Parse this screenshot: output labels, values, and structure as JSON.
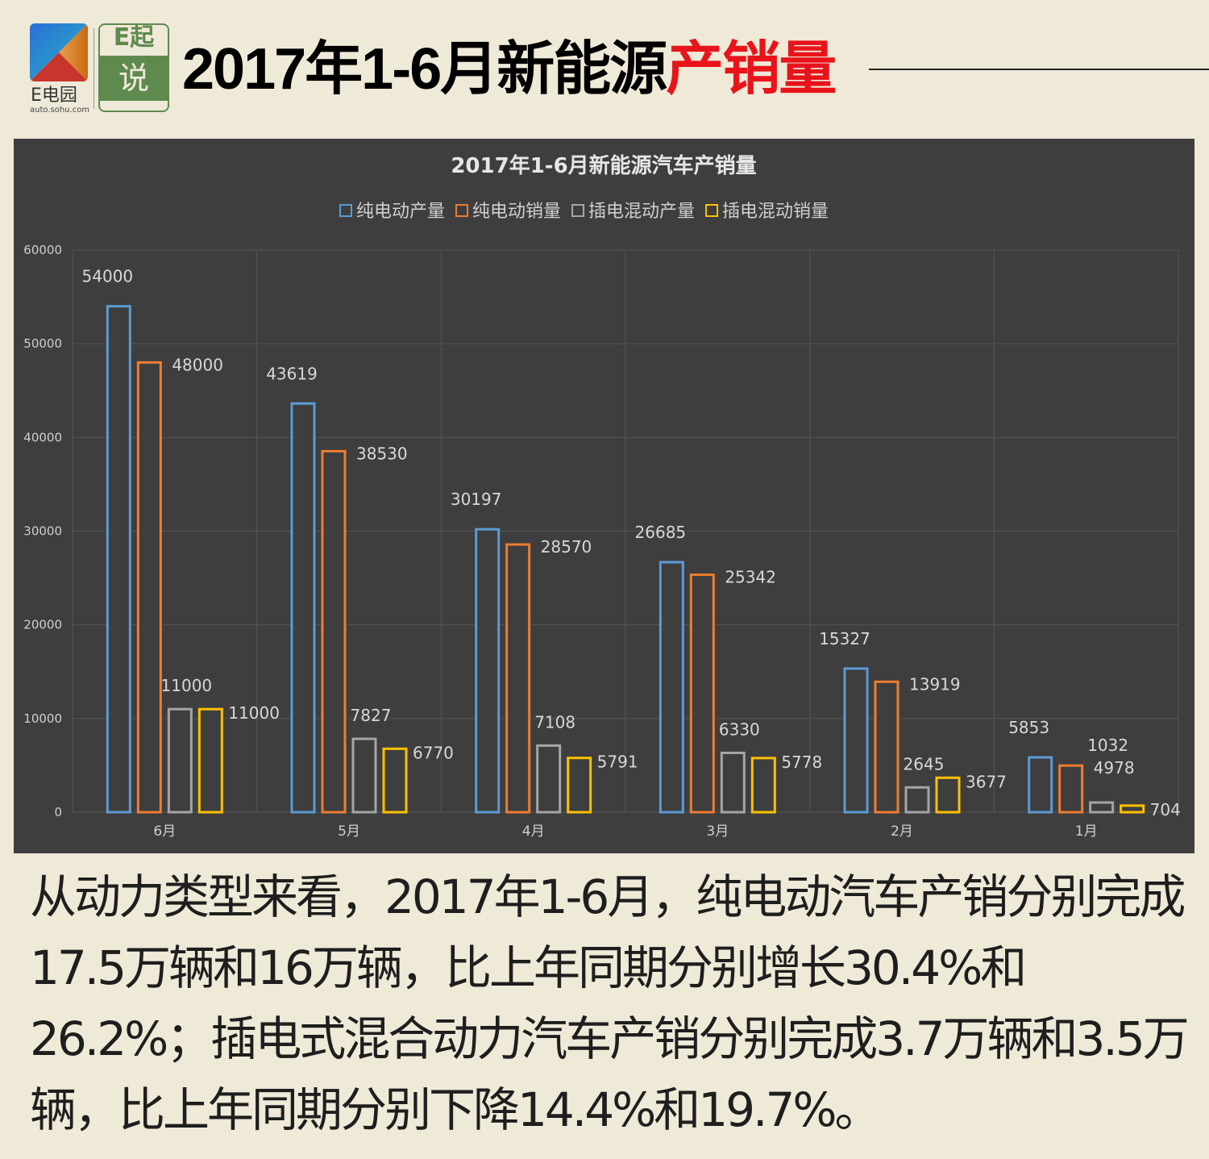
{
  "header": {
    "logo_text": "E电园",
    "logo_sub": "auto.sohu.com",
    "logo2_top": "E起",
    "logo2_mid": "说",
    "title_black": "2017年1-6月新能源",
    "title_red": "产销量"
  },
  "colors": {
    "bev_prod": "#5b9bd5",
    "bev_sales": "#ed7d31",
    "phev_prod": "#a5a5a5",
    "phev_sales": "#ffc000",
    "accent_red": "#e8141b"
  },
  "chart_data": {
    "type": "bar",
    "title": "2017年1-6月新能源汽车产销量",
    "categories": [
      "6月",
      "5月",
      "4月",
      "3月",
      "2月",
      "1月"
    ],
    "series": [
      {
        "name": "纯电动产量",
        "values": [
          54000,
          43619,
          30197,
          26685,
          15327,
          5853
        ]
      },
      {
        "name": "纯电动销量",
        "values": [
          48000,
          38530,
          28570,
          25342,
          13919,
          4978
        ]
      },
      {
        "name": "插电混动产量",
        "values": [
          11000,
          7827,
          7108,
          6330,
          2645,
          1032
        ]
      },
      {
        "name": "插电混动销量",
        "values": [
          11000,
          6770,
          5791,
          5778,
          3677,
          704
        ]
      }
    ],
    "ylim": [
      0,
      60000
    ],
    "yticks": [
      0,
      10000,
      20000,
      30000,
      40000,
      50000,
      60000
    ],
    "legend_position": "top",
    "grid": true,
    "xlabel": "",
    "ylabel": ""
  },
  "body_text": "从动力类型来看，2017年1-6月，纯电动汽车产销分别完成17.5万辆和16万辆，比上年同期分别增长30.4%和26.2%；插电式混合动力汽车产销分别完成3.7万辆和3.5万辆，比上年同期分别下降14.4%和19.7%。"
}
